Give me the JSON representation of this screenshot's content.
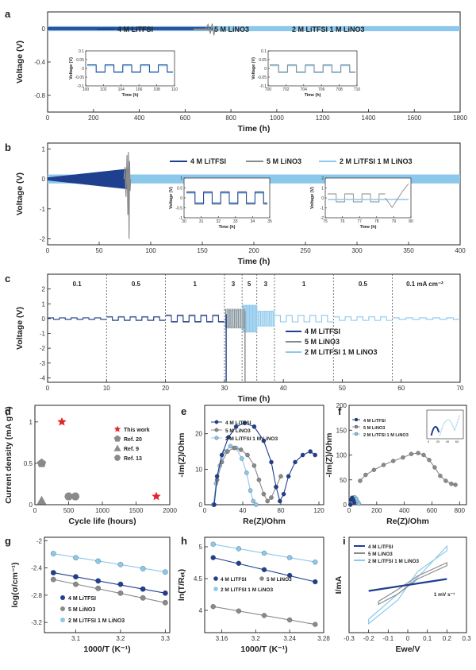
{
  "series_names": {
    "a": [
      "4 M LiTFSI",
      "5 M LiNO3",
      "2 M LiTFSI 1 M LiNO3"
    ],
    "b": [
      "4 M  LiTFSI",
      "5 M LiNO3",
      "2 M LiTFSI  1 M LiNO3"
    ],
    "c": [
      "4 M LiTFSI",
      "5 M LiNO3",
      "2 M LiTFSI 1 M LiNO3"
    ],
    "e": [
      "4 M LiTFSI",
      "5 M LiNO3",
      "2 M LiTFSI 1 M LiNO3"
    ],
    "f": [
      "4 M LiTFSI",
      "5 M LiNO3",
      "2 M LiTFSI 1 M LiNO3"
    ],
    "g": [
      "4 M LiTFSI",
      "5 M LiNO3",
      "2 M LiTFSI 1 M LiNO3"
    ],
    "h": [
      "4 M LiTFSI",
      "5 M LiNO3",
      "2 M LiTFSI 1 M LiNO3"
    ],
    "i": [
      "4 M LiTFSI",
      "5 M LiNO3",
      "2 M LiTFSI 1 M LiNO3"
    ]
  },
  "colors": {
    "litfsi": "#1f3f8f",
    "lino3": "#8a8a8a",
    "hybrid": "#8cc8ec",
    "star": "#e0262a",
    "refs": "#8a8a8a"
  },
  "chart_data": [
    {
      "panel": "a",
      "type": "line",
      "xlabel": "Time (h)",
      "ylabel": "Voltage (V)",
      "xlim": [
        0,
        1800
      ],
      "ylim": [
        -1.0,
        0.2
      ],
      "xticks": [
        0,
        200,
        400,
        600,
        800,
        1000,
        1200,
        1400,
        1600,
        1800
      ],
      "yticks": [
        -0.8,
        -0.4,
        0.0
      ],
      "series": [
        {
          "name": "4 M LiTFSI",
          "x_range": [
            0,
            720
          ],
          "amplitude": 0.02
        },
        {
          "name": "5 M LiNO3",
          "x_range": [
            0,
            730
          ],
          "amplitude": 0.02
        },
        {
          "name": "2 M LiTFSI 1 M LiNO3",
          "x_range": [
            0,
            1800
          ],
          "amplitude": 0.03
        }
      ],
      "insets": [
        {
          "xlabel": "Time (h)",
          "ylabel": "Voltage (V)",
          "xlim": [
            100,
            110
          ],
          "ylim": [
            -0.1,
            0.1
          ],
          "xticks": [
            100,
            102,
            104,
            106,
            108,
            110
          ],
          "yticks": [
            -0.1,
            -0.05,
            0.0,
            0.05,
            0.1
          ],
          "amplitude": 0.02
        },
        {
          "xlabel": "Time (h)",
          "ylabel": "Voltage (V)",
          "xlim": [
            700,
            710
          ],
          "ylim": [
            -0.1,
            0.1
          ],
          "xticks": [
            700,
            702,
            704,
            706,
            708,
            710
          ],
          "yticks": [
            -0.1,
            -0.05,
            0.0,
            0.05,
            0.1
          ],
          "amplitude": 0.02
        }
      ]
    },
    {
      "panel": "b",
      "type": "line",
      "xlabel": "Time (h)",
      "ylabel": "Voltage (V)",
      "xlim": [
        0,
        400
      ],
      "ylim": [
        -2.2,
        1.2
      ],
      "xticks": [
        0,
        50,
        100,
        150,
        200,
        250,
        300,
        350,
        400
      ],
      "yticks": [
        -2,
        -1,
        0,
        1
      ],
      "series": [
        {
          "name": "4 M  LiTFSI",
          "x_range": [
            0,
            80
          ],
          "amplitude": 0.25
        },
        {
          "name": "5 M LiNO3",
          "x_range": [
            0,
            80
          ],
          "amplitude": 1.0
        },
        {
          "name": "2 M LiTFSI  1 M LiNO3",
          "x_range": [
            0,
            400
          ],
          "amplitude": 0.15
        }
      ],
      "insets": [
        {
          "xlabel": "Time (h)",
          "ylabel": "Voltage (V)",
          "xlim": [
            30,
            35
          ],
          "ylim": [
            -1.0,
            1.0
          ],
          "xticks": [
            30,
            31,
            32,
            33,
            34,
            35
          ],
          "yticks": [
            -1.0,
            -0.5,
            0.0,
            0.5,
            1.0
          ]
        },
        {
          "xlabel": "Time (h)",
          "ylabel": "Voltage (V)",
          "xlim": [
            75,
            80
          ],
          "ylim": [
            -2,
            2
          ],
          "xticks": [
            75,
            76,
            77,
            78,
            79,
            80
          ],
          "yticks": [
            -2,
            -1,
            0,
            1,
            2
          ]
        }
      ]
    },
    {
      "panel": "c",
      "type": "line",
      "xlabel": "Time (h)",
      "ylabel": "Voltage (V)",
      "xlim": [
        0,
        70
      ],
      "ylim": [
        -4.3,
        3.0
      ],
      "xticks": [
        0,
        10,
        20,
        30,
        40,
        50,
        60,
        70
      ],
      "yticks": [
        -4,
        -3,
        -2,
        -1,
        0,
        1,
        2
      ],
      "annotations": [
        "0.1",
        "0.5",
        "1",
        "3",
        "5",
        "3",
        "1",
        "0.5",
        "0.1 mA cm⁻²"
      ],
      "dividers": [
        10,
        20,
        30,
        33,
        35.5,
        38.5,
        48.5,
        58.5
      ],
      "series": [
        {
          "name": "4 M LiTFSI",
          "x_range": [
            0,
            30.5
          ]
        },
        {
          "name": "5 M LiNO3",
          "x_range": [
            0,
            33.5
          ]
        },
        {
          "name": "2 M LiTFSI 1 M LiNO3",
          "x_range": [
            0,
            70
          ]
        }
      ]
    },
    {
      "panel": "d",
      "type": "scatter",
      "xlabel": "Cycle life (hours)",
      "ylabel": "Current density (mA g⁻¹)",
      "xlim": [
        0,
        2000
      ],
      "ylim": [
        0,
        1.2
      ],
      "xticks": [
        0,
        500,
        1000,
        1500,
        2000
      ],
      "yticks": [
        0.0,
        0.5,
        1.0
      ],
      "series": [
        {
          "name": "This work",
          "marker": "star",
          "x": [
            400,
            1800
          ],
          "y": [
            1.0,
            0.1
          ]
        },
        {
          "name": "Ref. 20",
          "marker": "pentagon",
          "x": [
            100
          ],
          "y": [
            0.5
          ]
        },
        {
          "name": "Ref. 9",
          "marker": "triangle",
          "x": [
            100
          ],
          "y": [
            0.05
          ]
        },
        {
          "name": "Ref. 13",
          "marker": "circle",
          "x": [
            500,
            600
          ],
          "y": [
            0.1,
            0.1
          ]
        }
      ]
    },
    {
      "panel": "e",
      "type": "line",
      "xlabel": "Re(Z)/Ohm",
      "ylabel": "-Im(Z)/Ohm",
      "xlim": [
        0,
        125
      ],
      "ylim": [
        0,
        28
      ],
      "xticks": [
        0,
        40,
        80,
        120
      ],
      "yticks": [
        0,
        10,
        20
      ],
      "series": [
        {
          "name": "4 M LiTFSI",
          "x": [
            10,
            13,
            18,
            25,
            33,
            42,
            52,
            62,
            70,
            75,
            79,
            83,
            88,
            95,
            103,
            111,
            116
          ],
          "y": [
            0,
            8,
            14,
            19,
            22,
            23,
            22,
            18,
            12,
            5,
            1,
            3,
            8,
            12,
            14,
            15,
            14
          ]
        },
        {
          "name": "5 M LiNO3",
          "x": [
            10,
            13,
            18,
            24,
            31,
            38,
            45,
            52,
            57,
            62,
            66,
            70,
            75,
            80
          ],
          "y": [
            0,
            7,
            12,
            15,
            16,
            15.5,
            14,
            11,
            7,
            3,
            1,
            2,
            5,
            8
          ]
        },
        {
          "name": "2 M LiTFSI 1 M LiNO3",
          "x": [
            9,
            12,
            16,
            21,
            27,
            33,
            39,
            44,
            48,
            51,
            54
          ],
          "y": [
            0,
            6,
            11,
            15,
            16.5,
            16,
            13,
            9,
            4,
            1,
            0
          ]
        }
      ]
    },
    {
      "panel": "f",
      "type": "line",
      "xlabel": "Re(Z)/Ohm",
      "ylabel": "-Im(Z)/Ohm",
      "xlim": [
        0,
        850
      ],
      "ylim": [
        0,
        200
      ],
      "xticks": [
        0,
        200,
        400,
        600,
        800
      ],
      "yticks": [
        0,
        50,
        100,
        150,
        200
      ],
      "series": [
        {
          "name": "4 M LiTFSI",
          "x": [
            10,
            15,
            22,
            30,
            38
          ],
          "y": [
            0,
            10,
            14,
            10,
            4
          ]
        },
        {
          "name": "5 M LiNO3",
          "x": [
            80,
            120,
            180,
            250,
            320,
            390,
            450,
            500,
            540,
            580,
            620,
            660,
            700,
            740,
            770
          ],
          "y": [
            48,
            60,
            70,
            80,
            88,
            95,
            102,
            104,
            100,
            90,
            75,
            58,
            48,
            42,
            40
          ]
        },
        {
          "name": "2 M LiTFSI 1 M LiNO3",
          "x": [
            10,
            18,
            28,
            40,
            52,
            62,
            72
          ],
          "y": [
            0,
            8,
            14,
            15,
            12,
            6,
            2
          ]
        }
      ],
      "inset": {
        "xticks": [
          0,
          20,
          40,
          60
        ]
      }
    },
    {
      "panel": "g",
      "type": "scatter",
      "xlabel": "1000/T (K⁻¹)",
      "ylabel": "log(σ/cm⁻¹)",
      "xlim": [
        3.03,
        3.31
      ],
      "ylim": [
        -3.35,
        -1.95
      ],
      "xticks": [
        3.1,
        3.2,
        3.3
      ],
      "yticks": [
        -3.2,
        -2.8,
        -2.4,
        -2.0
      ],
      "series": [
        {
          "name": "4 M LiTFSI",
          "x": [
            3.05,
            3.1,
            3.15,
            3.2,
            3.25,
            3.3
          ],
          "y": [
            -2.47,
            -2.53,
            -2.59,
            -2.64,
            -2.71,
            -2.77
          ]
        },
        {
          "name": "5 M LiNO3",
          "x": [
            3.05,
            3.1,
            3.15,
            3.2,
            3.25,
            3.3
          ],
          "y": [
            -2.57,
            -2.64,
            -2.7,
            -2.77,
            -2.84,
            -2.91
          ]
        },
        {
          "name": "2 M LiTFSI 1 M LiNO3",
          "x": [
            3.05,
            3.1,
            3.15,
            3.2,
            3.25,
            3.3
          ],
          "y": [
            -2.19,
            -2.25,
            -2.3,
            -2.35,
            -2.41,
            -2.46
          ]
        }
      ]
    },
    {
      "panel": "h",
      "type": "scatter",
      "xlabel": "1000/T (K⁻¹)",
      "ylabel": "ln(T/Rₑₜ)",
      "xlim": [
        3.14,
        3.28
      ],
      "ylim": [
        3.65,
        5.15
      ],
      "xticks": [
        3.16,
        3.2,
        3.24,
        3.28
      ],
      "yticks": [
        4.0,
        4.5,
        5.0
      ],
      "series": [
        {
          "name": "4 M LiTFSI",
          "x": [
            3.15,
            3.18,
            3.21,
            3.24,
            3.27
          ],
          "y": [
            4.83,
            4.74,
            4.64,
            4.55,
            4.45
          ]
        },
        {
          "name": "5 M LiNO3",
          "x": [
            3.15,
            3.18,
            3.21,
            3.24,
            3.27
          ],
          "y": [
            4.06,
            3.99,
            3.92,
            3.85,
            3.78
          ]
        },
        {
          "name": "2 M LiTFSI 1 M LiNO3",
          "x": [
            3.15,
            3.18,
            3.21,
            3.24,
            3.27
          ],
          "y": [
            5.04,
            4.97,
            4.9,
            4.83,
            4.76
          ]
        }
      ]
    },
    {
      "panel": "i",
      "type": "line",
      "xlabel": "Ewe/V",
      "ylabel": "I/mA",
      "xlim": [
        -0.3,
        0.3
      ],
      "ylim": [
        -3.2,
        3.2
      ],
      "xticks": [
        -0.3,
        -0.2,
        -0.1,
        0.0,
        0.1,
        0.2,
        0.3
      ],
      "annotation": "1 mV s⁻¹",
      "series": [
        {
          "name": "4 M LiTFSI",
          "x": [
            -0.2,
            0.0,
            0.2
          ],
          "y": [
            -0.4,
            0.0,
            0.4
          ]
        },
        {
          "name": "5 M LiNO3",
          "x": [
            -0.15,
            -0.15,
            -0.05,
            0.05,
            0.2,
            0.2,
            0.05,
            -0.05,
            -0.15
          ],
          "y": [
            -1.1,
            -1.3,
            -0.6,
            0.4,
            1.3,
            1.5,
            0.6,
            -0.3,
            -1.1
          ]
        },
        {
          "name": "2 M LiTFSI 1 M LiNO3",
          "x": [
            -0.2,
            -0.2,
            -0.05,
            0.05,
            0.2,
            0.2,
            0.05,
            -0.05,
            -0.2
          ],
          "y": [
            -2.3,
            -2.6,
            -1.0,
            0.9,
            2.3,
            2.6,
            0.5,
            -0.6,
            -2.3
          ]
        }
      ]
    }
  ]
}
